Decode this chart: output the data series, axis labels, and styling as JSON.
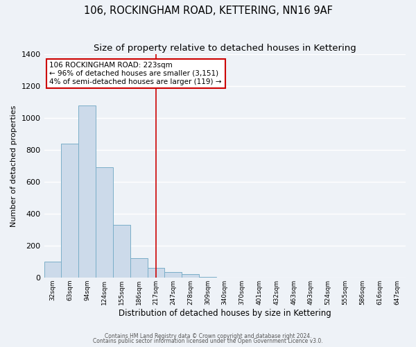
{
  "title": "106, ROCKINGHAM ROAD, KETTERING, NN16 9AF",
  "subtitle": "Size of property relative to detached houses in Kettering",
  "xlabel": "Distribution of detached houses by size in Kettering",
  "ylabel": "Number of detached properties",
  "bin_labels": [
    "32sqm",
    "63sqm",
    "94sqm",
    "124sqm",
    "155sqm",
    "186sqm",
    "217sqm",
    "247sqm",
    "278sqm",
    "309sqm",
    "340sqm",
    "370sqm",
    "401sqm",
    "432sqm",
    "463sqm",
    "493sqm",
    "524sqm",
    "555sqm",
    "586sqm",
    "616sqm",
    "647sqm"
  ],
  "bar_values": [
    100,
    840,
    1080,
    690,
    330,
    120,
    60,
    35,
    20,
    5,
    0,
    0,
    0,
    0,
    0,
    0,
    0,
    0,
    0,
    0,
    0
  ],
  "bar_color": "#ccdaea",
  "bar_edge_color": "#7aaec8",
  "vline_x": 6,
  "vline_color": "#cc0000",
  "ylim": [
    0,
    1400
  ],
  "yticks": [
    0,
    200,
    400,
    600,
    800,
    1000,
    1200,
    1400
  ],
  "annotation_title": "106 ROCKINGHAM ROAD: 223sqm",
  "annotation_line1": "← 96% of detached houses are smaller (3,151)",
  "annotation_line2": "4% of semi-detached houses are larger (119) →",
  "annotation_box_facecolor": "#ffffff",
  "annotation_box_edgecolor": "#cc0000",
  "footnote1": "Contains HM Land Registry data © Crown copyright and database right 2024.",
  "footnote2": "Contains public sector information licensed under the Open Government Licence v3.0.",
  "background_color": "#eef2f7",
  "grid_color": "#ffffff",
  "title_fontsize": 10.5,
  "subtitle_fontsize": 9.5,
  "ylabel_fontsize": 8,
  "xlabel_fontsize": 8.5,
  "ytick_fontsize": 8,
  "xtick_fontsize": 6.5,
  "annot_fontsize": 7.5,
  "footnote_fontsize": 5.5
}
